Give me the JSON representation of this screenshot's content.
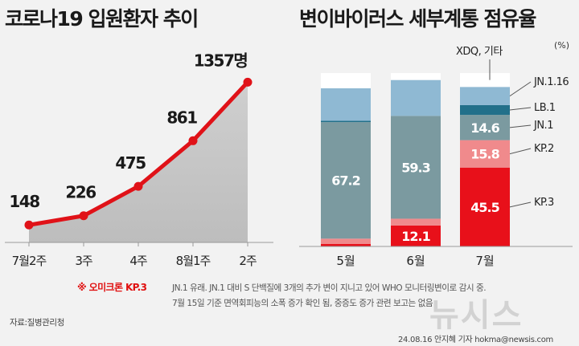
{
  "chart_data": [
    {
      "type": "area",
      "title": "코로나19 입원환자 추이",
      "categories": [
        "7월2주",
        "3주",
        "4주",
        "8월1주",
        "2주"
      ],
      "values": [
        148,
        226,
        475,
        861,
        1357
      ],
      "value_labels": [
        "148",
        "226",
        "475",
        "861",
        "1357명"
      ],
      "ylim": [
        0,
        1400
      ],
      "line_color": "#e01218",
      "fill_color": "#c8c8c8"
    },
    {
      "type": "bar",
      "stacked": true,
      "title": "변이바이러스 세부계통 점유율",
      "unit_label": "(%)",
      "categories": [
        "5월",
        "6월",
        "7월"
      ],
      "ylim": [
        0,
        100
      ],
      "series": [
        {
          "name": "KP.3",
          "legend_label": "KP.3",
          "color": "#e8101a",
          "values": [
            1.5,
            12.1,
            45.5
          ],
          "labels": [
            "",
            "12.1",
            "45.5"
          ]
        },
        {
          "name": "KP.2",
          "legend_label": "KP.2",
          "color": "#f08a8c",
          "values": [
            3.0,
            3.9,
            15.8
          ],
          "labels": [
            "",
            "",
            "15.8"
          ]
        },
        {
          "name": "JN.1",
          "legend_label": "JN.1",
          "color": "#7b9aa0",
          "values": [
            67.2,
            59.3,
            14.6
          ],
          "labels": [
            "67.2",
            "59.3",
            "14.6"
          ]
        },
        {
          "name": "LB.1",
          "legend_label": "LB.1",
          "color": "#22708a",
          "values": [
            0.8,
            0.0,
            5.6
          ],
          "labels": [
            "",
            "",
            ""
          ]
        },
        {
          "name": "JN.1.16",
          "legend_label": "JN.1.16",
          "color": "#8fb9d3",
          "values": [
            18.7,
            20.7,
            10.5
          ],
          "labels": [
            "",
            "",
            ""
          ]
        },
        {
          "name": "XDQ, 기타",
          "legend_label": "XDQ, 기타",
          "color": "#ffffff",
          "values": [
            8.8,
            4.0,
            8.0
          ],
          "labels": [
            "",
            "",
            ""
          ]
        }
      ]
    }
  ],
  "note": {
    "tag": "※ 오미크론 KP.3",
    "line1": "JN.1 유래. JN.1 대비 S 단백질에 3개의 추가 변이 지니고 있어 WHO 모니터링변이로 감시 중.",
    "line2": "7월 15일 기준 면역회피능의 소폭 증가 확인 됨, 중증도 증가 관련 보고는 없음"
  },
  "source": "자료:질병관리청",
  "credit": "24.08.16 안지혜 기자 hokma@newsis.com",
  "watermark": "뉴시스"
}
